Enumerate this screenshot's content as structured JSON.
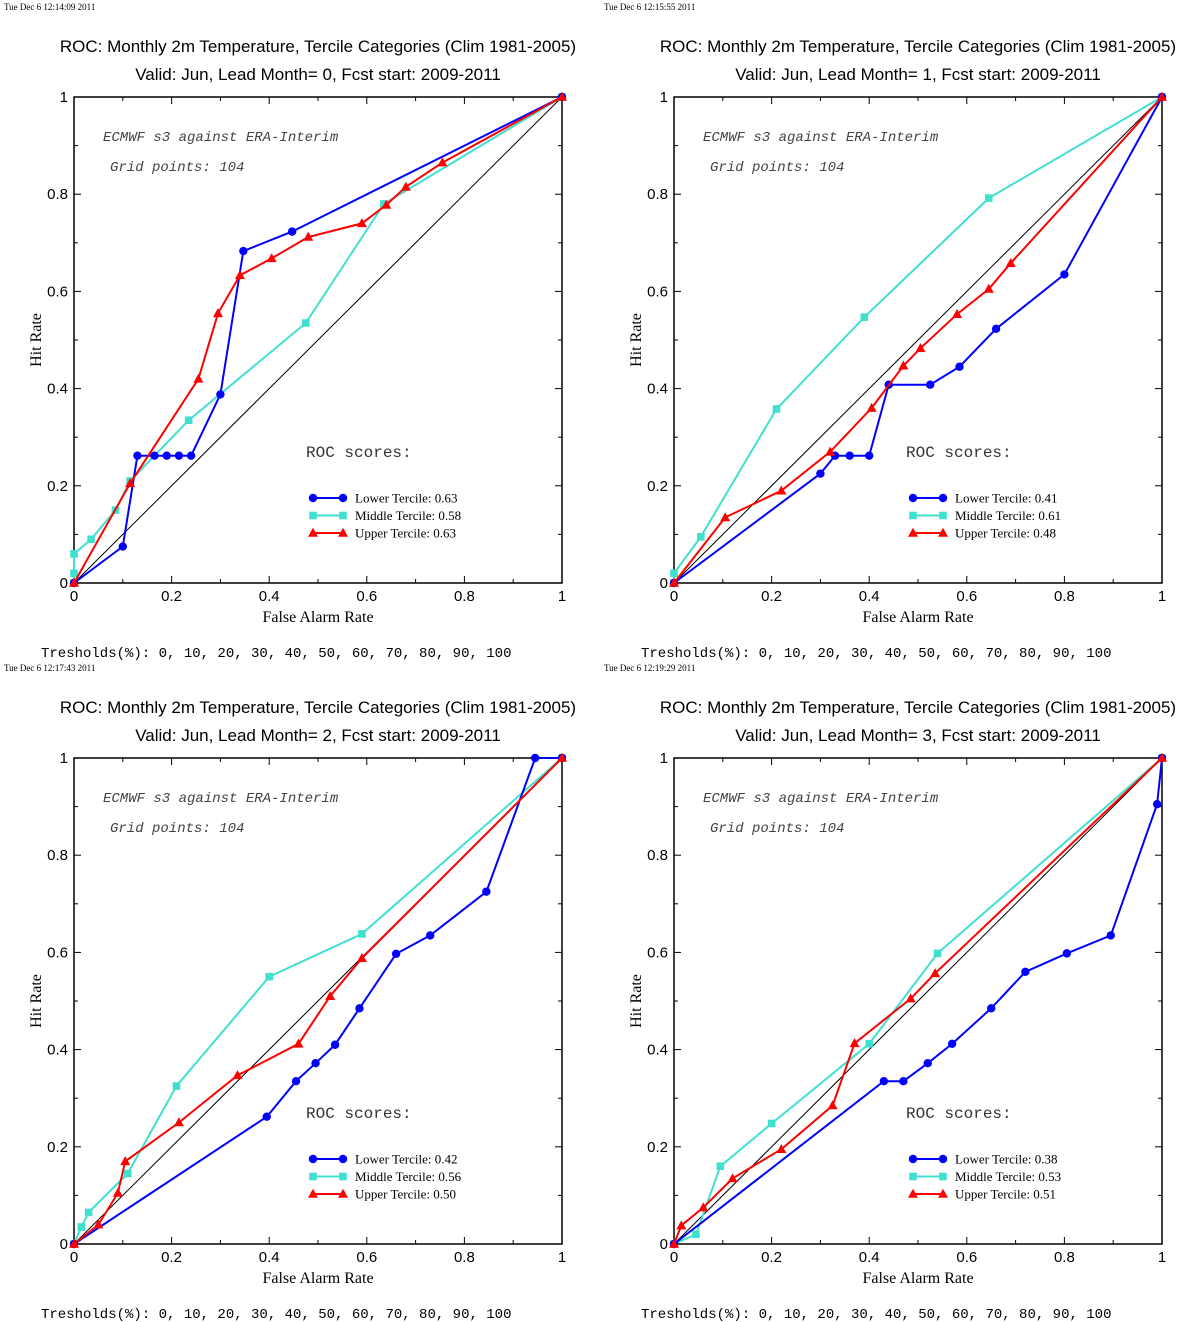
{
  "colors": {
    "lower": "#0000ff",
    "middle": "#40e0d0",
    "upper": "#ff0000",
    "diagonal": "#000000"
  },
  "chart_data": [
    {
      "type": "line",
      "timestamp": "Tue Dec  6 12:14:09 2011",
      "title": "ROC: Monthly 2m Temperature, Tercile Categories (Clim 1981-2005)",
      "subtitle": "Valid: Jun, Lead Month= 0, Fcst start: 2009-2011",
      "xlabel": "False Alarm Rate",
      "ylabel": "Hit Rate",
      "xlim": [
        0,
        1
      ],
      "ylim": [
        0,
        1
      ],
      "xticks": [
        "0",
        "0.2",
        "0.4",
        "0.6",
        "0.8",
        "1"
      ],
      "yticks": [
        "0",
        "0.2",
        "0.4",
        "0.6",
        "0.8",
        "1"
      ],
      "annotation_1": "ECMWF s3 against ERA-Interim",
      "annotation_2": "Grid points:  104",
      "roc_heading": "ROC scores:",
      "thresholds": "Tresholds(%): 0, 10, 20, 30, 40, 50, 60, 70, 80, 90, 100",
      "series": [
        {
          "name": "Lower Tercile: 0.63",
          "marker": "circle",
          "points": [
            [
              0,
              0
            ],
            [
              0.1,
              0.075
            ],
            [
              0.13,
              0.262
            ],
            [
              0.165,
              0.262
            ],
            [
              0.19,
              0.262
            ],
            [
              0.215,
              0.262
            ],
            [
              0.24,
              0.262
            ],
            [
              0.3,
              0.388
            ],
            [
              0.347,
              0.683
            ],
            [
              0.447,
              0.723
            ],
            [
              1,
              1
            ]
          ]
        },
        {
          "name": "Middle Tercile: 0.58",
          "marker": "square",
          "points": [
            [
              0,
              0
            ],
            [
              0,
              0.02
            ],
            [
              0,
              0.06
            ],
            [
              0.035,
              0.09
            ],
            [
              0.085,
              0.15
            ],
            [
              0.115,
              0.21
            ],
            [
              0.235,
              0.335
            ],
            [
              0.475,
              0.535
            ],
            [
              0.635,
              0.78
            ],
            [
              1,
              1
            ]
          ]
        },
        {
          "name": "Upper Tercile: 0.63",
          "marker": "triangle",
          "points": [
            [
              0,
              0
            ],
            [
              0.115,
              0.205
            ],
            [
              0.255,
              0.42
            ],
            [
              0.295,
              0.555
            ],
            [
              0.34,
              0.633
            ],
            [
              0.405,
              0.668
            ],
            [
              0.48,
              0.712
            ],
            [
              0.59,
              0.74
            ],
            [
              0.64,
              0.778
            ],
            [
              0.68,
              0.815
            ],
            [
              0.755,
              0.865
            ],
            [
              1,
              1
            ]
          ]
        }
      ]
    },
    {
      "type": "line",
      "timestamp": "Tue Dec  6 12:15:55 2011",
      "title": "ROC: Monthly 2m Temperature, Tercile Categories (Clim 1981-2005)",
      "subtitle": "Valid: Jun, Lead Month= 1, Fcst start: 2009-2011",
      "xlabel": "False Alarm Rate",
      "ylabel": "Hit Rate",
      "xlim": [
        0,
        1
      ],
      "ylim": [
        0,
        1
      ],
      "xticks": [
        "0",
        "0.2",
        "0.4",
        "0.6",
        "0.8",
        "1"
      ],
      "yticks": [
        "0",
        "0.2",
        "0.4",
        "0.6",
        "0.8",
        "1"
      ],
      "annotation_1": "ECMWF s3 against ERA-Interim",
      "annotation_2": "Grid points:  104",
      "roc_heading": "ROC scores:",
      "thresholds": "Tresholds(%): 0, 10, 20, 30, 40, 50, 60, 70, 80, 90, 100",
      "series": [
        {
          "name": "Lower Tercile: 0.41",
          "marker": "circle",
          "points": [
            [
              0,
              0
            ],
            [
              0.3,
              0.225
            ],
            [
              0.33,
              0.262
            ],
            [
              0.36,
              0.262
            ],
            [
              0.4,
              0.262
            ],
            [
              0.44,
              0.408
            ],
            [
              0.525,
              0.408
            ],
            [
              0.585,
              0.445
            ],
            [
              0.66,
              0.523
            ],
            [
              0.8,
              0.635
            ],
            [
              1,
              1
            ]
          ]
        },
        {
          "name": "Middle Tercile: 0.61",
          "marker": "square",
          "points": [
            [
              0,
              0
            ],
            [
              0,
              0.02
            ],
            [
              0.055,
              0.095
            ],
            [
              0.21,
              0.358
            ],
            [
              0.39,
              0.547
            ],
            [
              0.645,
              0.792
            ],
            [
              1,
              1
            ]
          ]
        },
        {
          "name": "Upper Tercile: 0.48",
          "marker": "triangle",
          "points": [
            [
              0,
              0
            ],
            [
              0.105,
              0.135
            ],
            [
              0.22,
              0.19
            ],
            [
              0.32,
              0.27
            ],
            [
              0.405,
              0.36
            ],
            [
              0.47,
              0.447
            ],
            [
              0.505,
              0.483
            ],
            [
              0.58,
              0.553
            ],
            [
              0.645,
              0.605
            ],
            [
              0.69,
              0.658
            ],
            [
              1,
              1
            ]
          ]
        }
      ]
    },
    {
      "type": "line",
      "timestamp": "Tue Dec  6 12:17:43 2011",
      "title": "ROC: Monthly 2m Temperature, Tercile Categories (Clim 1981-2005)",
      "subtitle": "Valid: Jun, Lead Month= 2, Fcst start: 2009-2011",
      "xlabel": "False Alarm Rate",
      "ylabel": "Hit Rate",
      "xlim": [
        0,
        1
      ],
      "ylim": [
        0,
        1
      ],
      "xticks": [
        "0",
        "0.2",
        "0.4",
        "0.6",
        "0.8",
        "1"
      ],
      "yticks": [
        "0",
        "0.2",
        "0.4",
        "0.6",
        "0.8",
        "1"
      ],
      "annotation_1": "ECMWF s3 against ERA-Interim",
      "annotation_2": "Grid points:  104",
      "roc_heading": "ROC scores:",
      "thresholds": "Tresholds(%): 0, 10, 20, 30, 40, 50, 60, 70, 80, 90, 100",
      "series": [
        {
          "name": "Lower Tercile: 0.42",
          "marker": "circle",
          "points": [
            [
              0,
              0
            ],
            [
              0.395,
              0.262
            ],
            [
              0.455,
              0.335
            ],
            [
              0.495,
              0.372
            ],
            [
              0.535,
              0.41
            ],
            [
              0.585,
              0.485
            ],
            [
              0.66,
              0.597
            ],
            [
              0.73,
              0.635
            ],
            [
              0.845,
              0.725
            ],
            [
              0.945,
              1
            ],
            [
              1,
              1
            ]
          ]
        },
        {
          "name": "Middle Tercile: 0.56",
          "marker": "square",
          "points": [
            [
              0,
              0
            ],
            [
              0.015,
              0.035
            ],
            [
              0.03,
              0.065
            ],
            [
              0.11,
              0.145
            ],
            [
              0.21,
              0.325
            ],
            [
              0.4,
              0.55
            ],
            [
              0.59,
              0.638
            ],
            [
              1,
              1
            ]
          ]
        },
        {
          "name": "Upper Tercile: 0.50",
          "marker": "triangle",
          "points": [
            [
              0,
              0
            ],
            [
              0.05,
              0.04
            ],
            [
              0.09,
              0.105
            ],
            [
              0.105,
              0.17
            ],
            [
              0.215,
              0.25
            ],
            [
              0.335,
              0.347
            ],
            [
              0.46,
              0.412
            ],
            [
              0.525,
              0.51
            ],
            [
              0.59,
              0.588
            ],
            [
              1,
              1
            ]
          ]
        }
      ]
    },
    {
      "type": "line",
      "timestamp": "Tue Dec  6 12:19:29 2011",
      "title": "ROC: Monthly 2m Temperature, Tercile Categories (Clim 1981-2005)",
      "subtitle": "Valid: Jun, Lead Month= 3, Fcst start: 2009-2011",
      "xlabel": "False Alarm Rate",
      "ylabel": "Hit Rate",
      "xlim": [
        0,
        1
      ],
      "ylim": [
        0,
        1
      ],
      "xticks": [
        "0",
        "0.2",
        "0.4",
        "0.6",
        "0.8",
        "1"
      ],
      "yticks": [
        "0",
        "0.2",
        "0.4",
        "0.6",
        "0.8",
        "1"
      ],
      "annotation_1": "ECMWF s3 against ERA-Interim",
      "annotation_2": "Grid points:  104",
      "roc_heading": "ROC scores:",
      "thresholds": "Tresholds(%): 0, 10, 20, 30, 40, 50, 60, 70, 80, 90, 100",
      "series": [
        {
          "name": "Lower Tercile: 0.38",
          "marker": "circle",
          "points": [
            [
              0,
              0
            ],
            [
              0.43,
              0.335
            ],
            [
              0.47,
              0.335
            ],
            [
              0.52,
              0.372
            ],
            [
              0.57,
              0.412
            ],
            [
              0.65,
              0.485
            ],
            [
              0.72,
              0.56
            ],
            [
              0.805,
              0.598
            ],
            [
              0.895,
              0.635
            ],
            [
              0.99,
              0.905
            ],
            [
              1,
              1
            ]
          ]
        },
        {
          "name": "Middle Tercile: 0.53",
          "marker": "square",
          "points": [
            [
              0,
              0
            ],
            [
              0.045,
              0.02
            ],
            [
              0.095,
              0.16
            ],
            [
              0.2,
              0.248
            ],
            [
              0.4,
              0.412
            ],
            [
              0.54,
              0.598
            ],
            [
              1,
              1
            ]
          ]
        },
        {
          "name": "Upper Tercile: 0.51",
          "marker": "triangle",
          "points": [
            [
              0,
              0
            ],
            [
              0.015,
              0.038
            ],
            [
              0.06,
              0.075
            ],
            [
              0.12,
              0.135
            ],
            [
              0.22,
              0.195
            ],
            [
              0.325,
              0.285
            ],
            [
              0.37,
              0.413
            ],
            [
              0.485,
              0.505
            ],
            [
              0.535,
              0.557
            ],
            [
              1,
              1
            ]
          ]
        }
      ]
    }
  ]
}
